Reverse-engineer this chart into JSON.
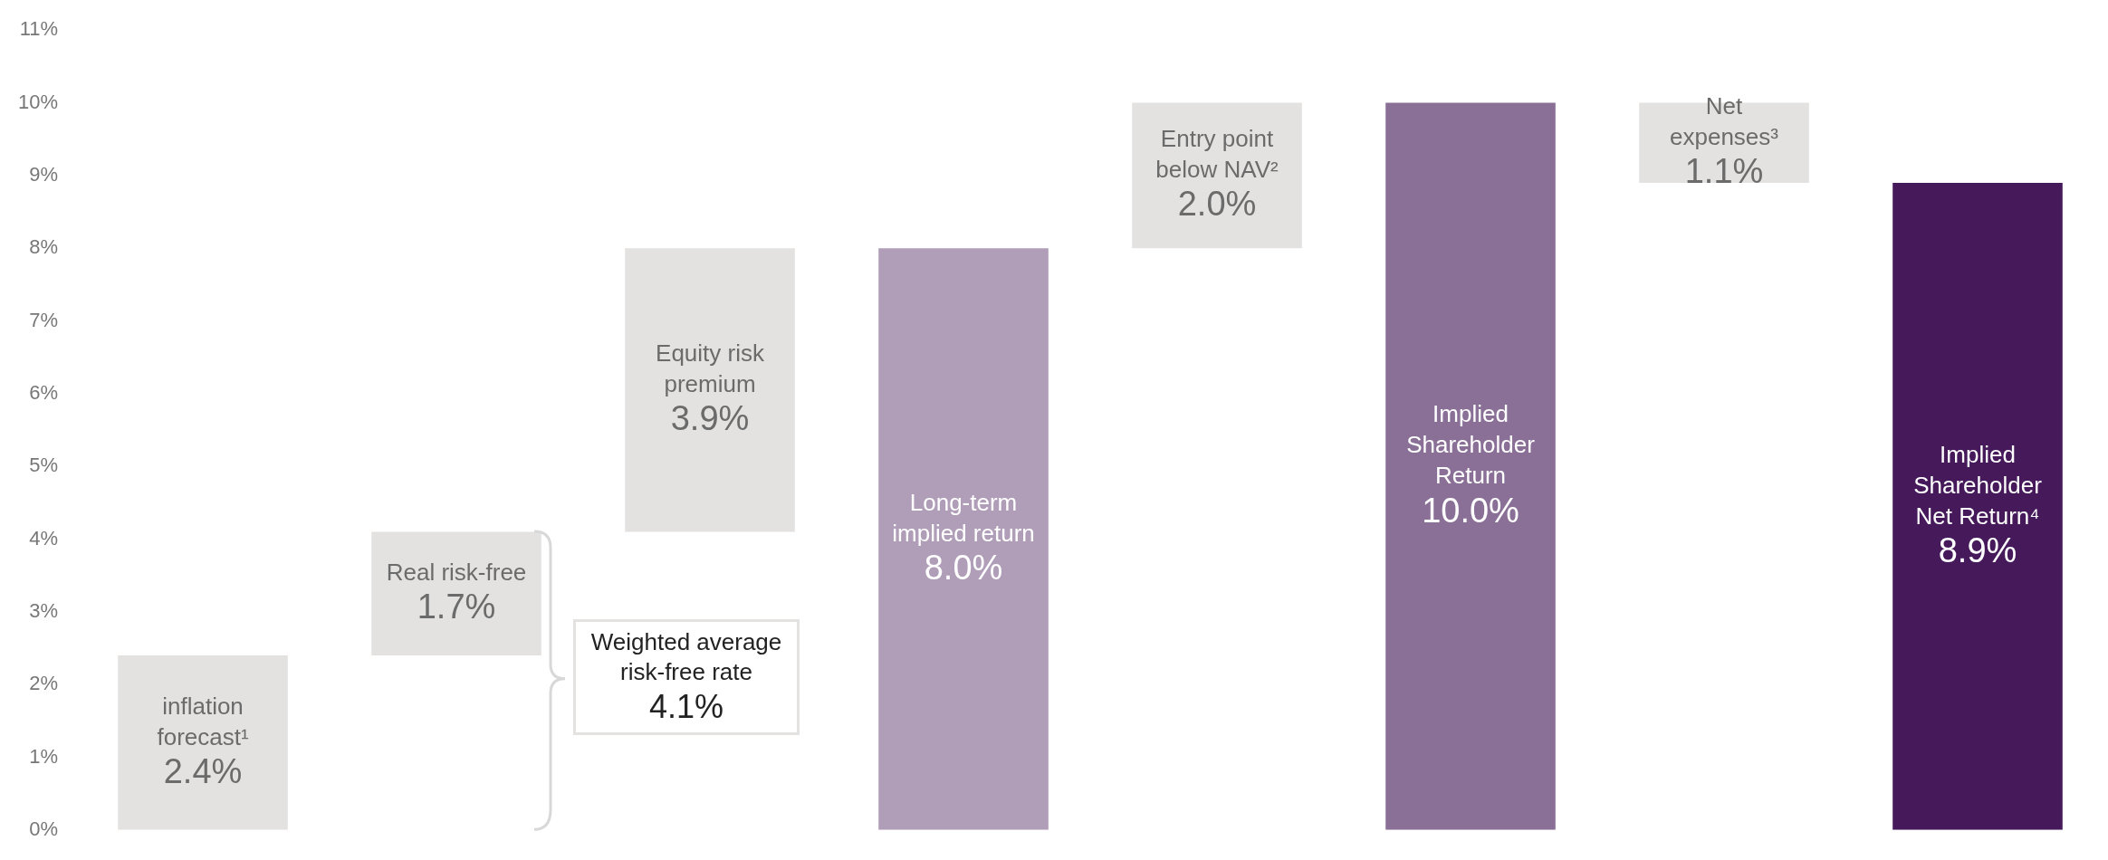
{
  "chart_data": {
    "type": "bar",
    "categories": [
      "inflation forecast¹",
      "Real risk-free",
      "Equity risk premium",
      "Long-term implied return",
      "Entry point below NAV²",
      "Implied Shareholder Return",
      "Net expenses³",
      "Implied Shareholder Net Return⁴"
    ],
    "values": [
      2.4,
      1.7,
      3.9,
      8.0,
      2.0,
      10.0,
      -1.1,
      8.9
    ],
    "base": [
      0,
      2.4,
      4.1,
      0,
      8.0,
      0,
      10.0,
      0
    ],
    "colors": [
      "#e3e2e1",
      "#e3e2e1",
      "#e3e2e1",
      "#b09eb8",
      "#e3e2e1",
      "#8a7096",
      "#e3e2e1",
      "#45195a"
    ],
    "value_labels": [
      "2.4%",
      "1.7%",
      "3.9%",
      "8.0%",
      "2.0%",
      "10.0%",
      "1.1%",
      "8.9%"
    ],
    "ylim": [
      0,
      11
    ],
    "yticks": [
      {
        "value": 0,
        "label": "0%"
      },
      {
        "value": 1,
        "label": "1%"
      },
      {
        "value": 2,
        "label": "2%"
      },
      {
        "value": 3,
        "label": "3%"
      },
      {
        "value": 4,
        "label": "4%"
      },
      {
        "value": 5,
        "label": "5%"
      },
      {
        "value": 6,
        "label": "6%"
      },
      {
        "value": 7,
        "label": "7%"
      },
      {
        "value": 8,
        "label": "8%"
      },
      {
        "value": 9,
        "label": "9%"
      },
      {
        "value": 10,
        "label": "10%"
      },
      {
        "value": 11,
        "label": "11%"
      }
    ],
    "annotations": [
      "Weighted average risk-free rate 4.1%"
    ],
    "grid": false,
    "legend": false
  }
}
